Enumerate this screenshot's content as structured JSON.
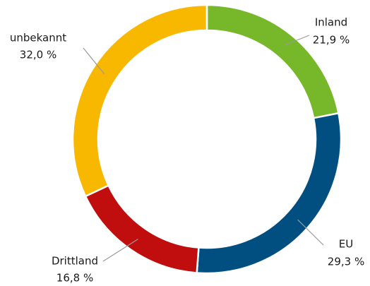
{
  "chart_data": {
    "type": "donut",
    "categories": [
      "Inland",
      "EU",
      "Drittland",
      "unbekannt"
    ],
    "values": [
      21.9,
      29.3,
      16.8,
      32.0
    ],
    "value_labels": [
      "21,9 %",
      "29,3 %",
      "16,8 %",
      "32,0 %"
    ],
    "colors": [
      "#76b82a",
      "#004f80",
      "#c00d0d",
      "#f9b800"
    ]
  }
}
